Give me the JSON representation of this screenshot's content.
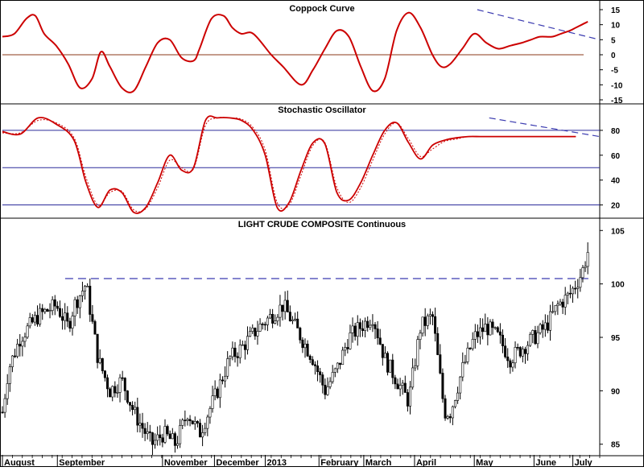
{
  "chart_data": [
    {
      "type": "line",
      "title": "Coppock Curve",
      "ylim": [
        -15,
        15
      ],
      "y_ticks": [
        "15",
        "10",
        "5",
        "0",
        "-5",
        "-10",
        "-15"
      ],
      "zero_line": 0,
      "series": [
        {
          "color": "#cc0000",
          "x": [
            0,
            0.02,
            0.04,
            0.055,
            0.07,
            0.09,
            0.11,
            0.13,
            0.15,
            0.165,
            0.18,
            0.2,
            0.22,
            0.24,
            0.26,
            0.28,
            0.3,
            0.32,
            0.33,
            0.35,
            0.37,
            0.385,
            0.4,
            0.42,
            0.45,
            0.47,
            0.5,
            0.52,
            0.54,
            0.56,
            0.58,
            0.6,
            0.62,
            0.64,
            0.66,
            0.68,
            0.7,
            0.72,
            0.735,
            0.75,
            0.77,
            0.79,
            0.81,
            0.83,
            0.85,
            0.87,
            0.885,
            0.9,
            0.92,
            0.935,
            0.95,
            0.96,
            0.97,
            0.98
          ],
          "values": [
            6,
            7,
            12,
            13,
            7,
            3,
            -3,
            -11,
            -8,
            1,
            -4,
            -11,
            -12,
            -4,
            4,
            5,
            -1,
            -2,
            2,
            12,
            13,
            9,
            7,
            7,
            0,
            -4,
            -10,
            -5,
            2,
            8,
            6,
            -4,
            -12,
            -8,
            8,
            14,
            9,
            0,
            -4,
            -3,
            2,
            7,
            4,
            2,
            3,
            4,
            5,
            6,
            6,
            7,
            8,
            9,
            10,
            11
          ]
        }
      ],
      "trendline": [
        [
          0.795,
          15
        ],
        [
          1.0,
          5
        ]
      ]
    },
    {
      "type": "line",
      "title": "Stochastic Oscillator",
      "ylim": [
        10,
        100
      ],
      "y_ticks": [
        "80",
        "60",
        "40",
        "20"
      ],
      "reference_lines": [
        80,
        50,
        20
      ],
      "series": [
        {
          "color": "#cc0000",
          "style": "solid",
          "x": [
            0,
            0.03,
            0.06,
            0.09,
            0.12,
            0.14,
            0.16,
            0.18,
            0.2,
            0.22,
            0.24,
            0.26,
            0.28,
            0.3,
            0.32,
            0.34,
            0.36,
            0.38,
            0.4,
            0.42,
            0.44,
            0.46,
            0.48,
            0.5,
            0.52,
            0.54,
            0.56,
            0.58,
            0.6,
            0.62,
            0.64,
            0.66,
            0.68,
            0.7,
            0.72,
            0.74,
            0.76,
            0.78,
            0.8,
            0.82,
            0.84,
            0.86,
            0.88,
            0.9,
            0.92,
            0.94,
            0.96
          ],
          "values": [
            79,
            77,
            90,
            85,
            72,
            38,
            18,
            32,
            30,
            14,
            18,
            38,
            60,
            48,
            50,
            88,
            90,
            90,
            88,
            80,
            60,
            18,
            22,
            48,
            70,
            69,
            30,
            24,
            38,
            60,
            80,
            86,
            70,
            57,
            68,
            72,
            74,
            75,
            75,
            75,
            75,
            75,
            75,
            75,
            75,
            75,
            75
          ]
        },
        {
          "color": "#cc0000",
          "style": "dotted",
          "x": [
            0,
            0.03,
            0.06,
            0.09,
            0.12,
            0.14,
            0.16,
            0.18,
            0.2,
            0.22,
            0.24,
            0.26,
            0.28,
            0.3,
            0.32,
            0.34,
            0.36,
            0.38,
            0.4,
            0.42,
            0.44,
            0.46,
            0.48,
            0.5,
            0.52,
            0.54,
            0.56,
            0.58,
            0.6,
            0.62,
            0.64,
            0.66,
            0.68,
            0.7,
            0.72,
            0.74,
            0.76,
            0.78,
            0.8,
            0.82,
            0.84,
            0.86,
            0.88,
            0.9,
            0.92,
            0.94,
            0.96
          ],
          "values": [
            78,
            78,
            88,
            86,
            74,
            42,
            20,
            30,
            31,
            16,
            17,
            34,
            56,
            50,
            49,
            84,
            90,
            90,
            89,
            82,
            64,
            22,
            20,
            44,
            68,
            70,
            34,
            22,
            34,
            56,
            77,
            86,
            73,
            59,
            65,
            71,
            73,
            75,
            75,
            75,
            75,
            75,
            75,
            75,
            75,
            75,
            75
          ]
        }
      ],
      "trendline": [
        [
          0.815,
          90
        ],
        [
          1.0,
          75
        ]
      ]
    },
    {
      "type": "ohlc",
      "title": "LIGHT CRUDE COMPOSITE Continuous",
      "ylim": [
        84,
        106
      ],
      "y_ticks": [
        "105",
        "100",
        "95",
        "90",
        "85"
      ],
      "x_labels": [
        "August",
        "September",
        "November",
        "December",
        "2013",
        "February",
        "March",
        "April",
        "May",
        "June",
        "July"
      ],
      "close_path_x": [
        0,
        0.01,
        0.03,
        0.06,
        0.09,
        0.11,
        0.12,
        0.14,
        0.16,
        0.18,
        0.2,
        0.22,
        0.25,
        0.27,
        0.29,
        0.31,
        0.33,
        0.36,
        0.38,
        0.4,
        0.43,
        0.45,
        0.47,
        0.5,
        0.52,
        0.54,
        0.56,
        0.58,
        0.6,
        0.62,
        0.64,
        0.66,
        0.68,
        0.7,
        0.72,
        0.74,
        0.75,
        0.77,
        0.79,
        0.81,
        0.83,
        0.85,
        0.87,
        0.89,
        0.91,
        0.93,
        0.95,
        0.96,
        0.97,
        0.98
      ],
      "close_path": [
        88,
        92,
        95,
        97,
        98,
        96,
        98,
        100,
        93,
        90,
        91,
        88,
        85,
        86,
        85,
        88,
        86,
        90,
        93,
        94,
        96,
        97,
        98,
        95,
        93,
        90,
        92,
        95,
        96,
        97,
        93,
        91,
        89,
        96,
        97,
        88,
        88,
        92,
        95,
        96,
        95,
        93,
        94,
        95,
        96,
        98,
        99,
        100,
        101,
        103
      ],
      "resistance_level": 100.5
    }
  ]
}
